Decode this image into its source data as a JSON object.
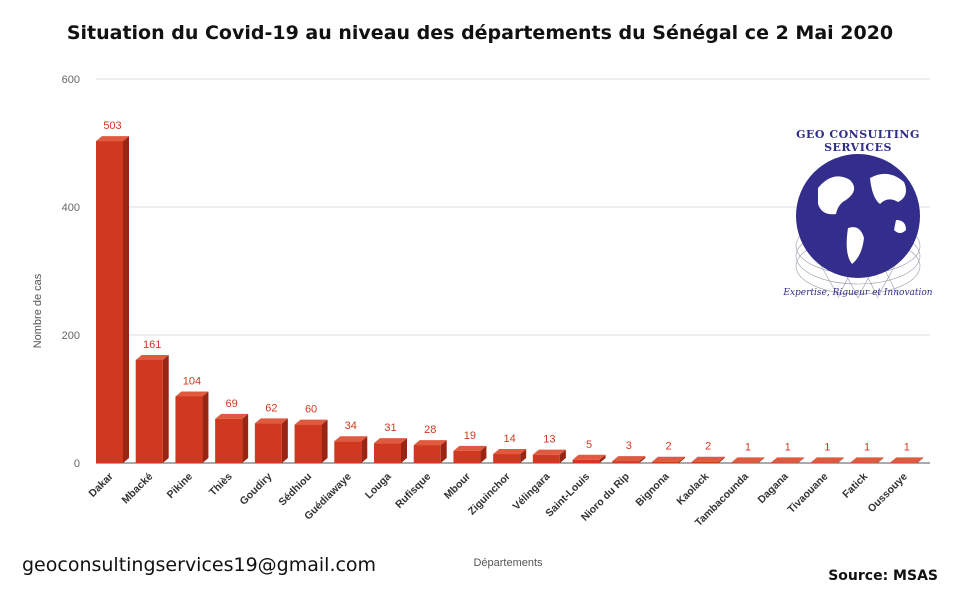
{
  "header": {
    "title": "Situation du Covid-19 au niveau des départements du Sénégal ce 2 Mai 2020"
  },
  "footer": {
    "email": "geoconsultingservices19@gmail.com",
    "source": "Source: MSAS"
  },
  "logo": {
    "top_text": "GEO CONSULTING SERVICES",
    "bottom_text": "Expertise, Rigueur et Innovation"
  },
  "colors": {
    "bar": "#d0391f",
    "bar_dark": "#9a2512",
    "label": "#d0391f",
    "grid": "#dddddd"
  },
  "chart_data": {
    "type": "bar",
    "title": "Situation du Covid-19 au niveau des départements du Sénégal ce 2 Mai 2020",
    "xlabel": "Départements",
    "ylabel": "Nombre de cas",
    "ylim": [
      0,
      600
    ],
    "yticks": [
      0,
      200,
      400,
      600
    ],
    "grid": true,
    "categories": [
      "Dakar",
      "Mbacké",
      "Pikine",
      "Thiès",
      "Goudiry",
      "Sédhiou",
      "Guédiawaye",
      "Louga",
      "Rufisque",
      "Mbour",
      "Ziguinchor",
      "Vélingara",
      "Saint-Louis",
      "Nioro du Rip",
      "Bignona",
      "Kaolack",
      "Tambacounda",
      "Dagana",
      "Tivaouane",
      "Fatick",
      "Oussouye"
    ],
    "values": [
      503,
      161,
      104,
      69,
      62,
      60,
      34,
      31,
      28,
      19,
      14,
      13,
      5,
      3,
      2,
      2,
      1,
      1,
      1,
      1,
      1
    ]
  }
}
